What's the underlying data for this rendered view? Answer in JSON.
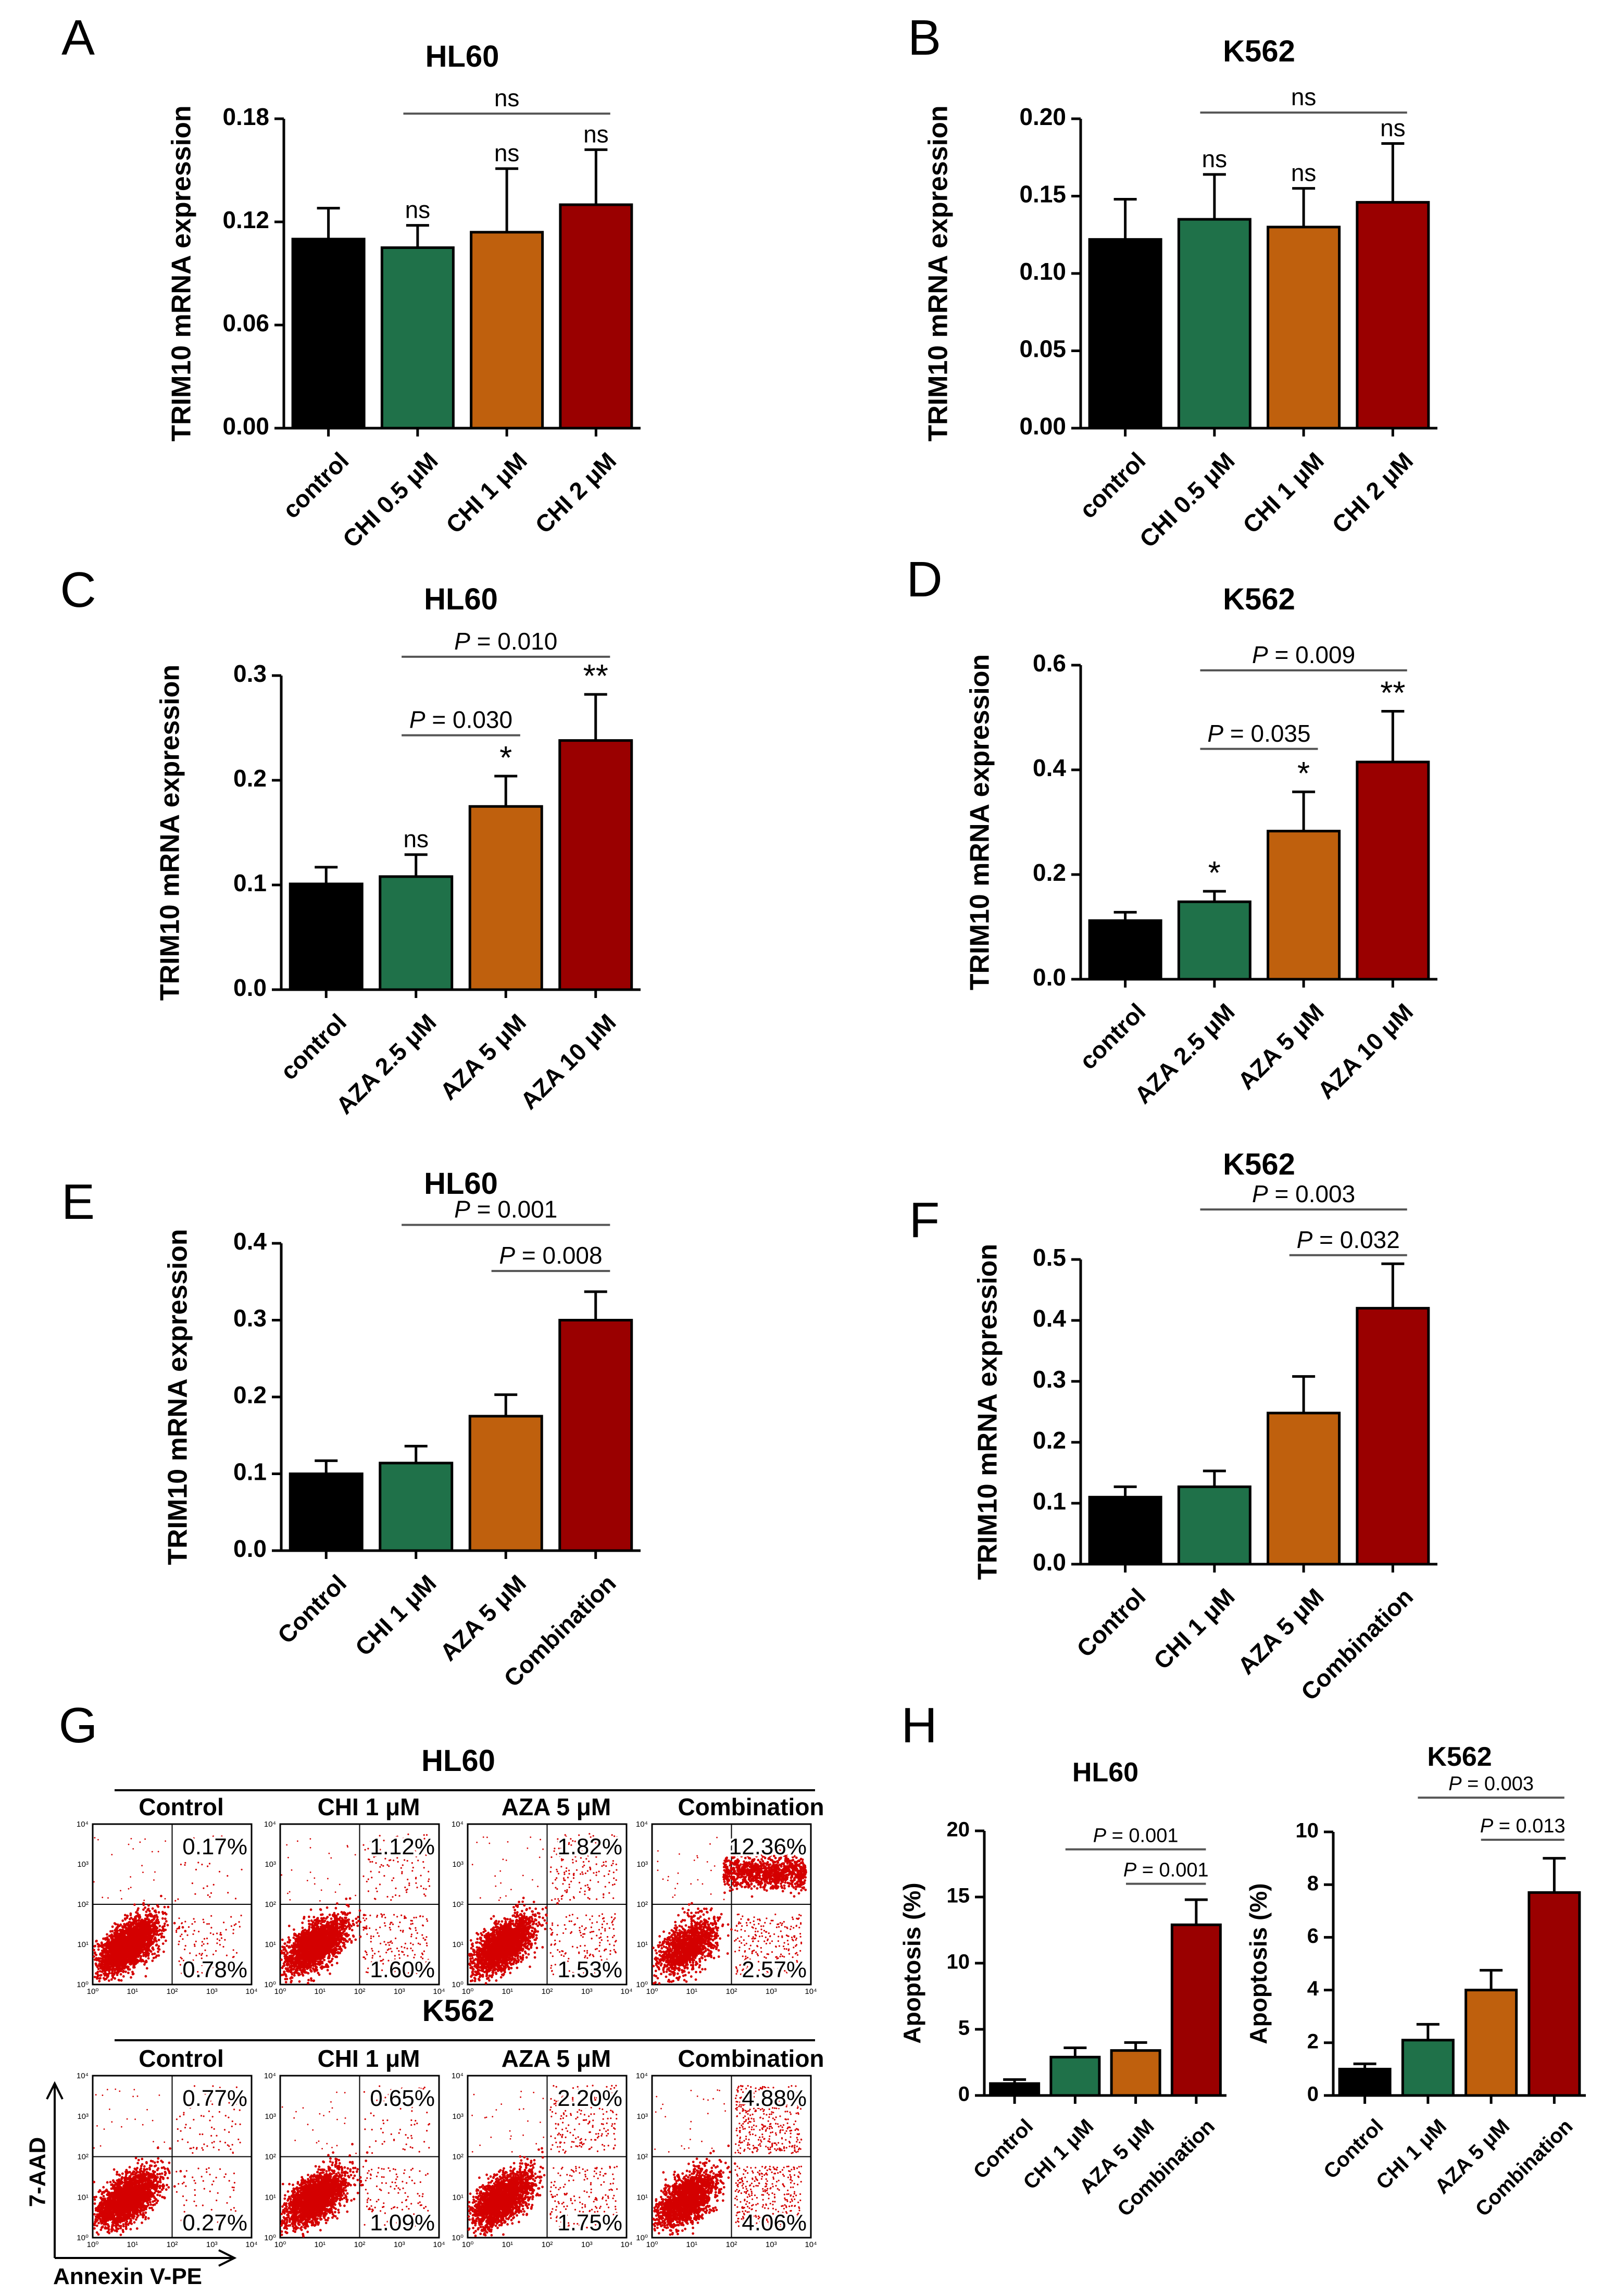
{
  "colors": {
    "control": "#000000",
    "green": "#1f7149",
    "orange": "#bf600d",
    "red": "#9a0000",
    "dot": "#d40000",
    "axis": "#000000",
    "sigline": "#555555"
  },
  "y_axis_title": "TRIM10 mRNA expression",
  "chart_data": [
    {
      "id": "A",
      "panel_label": "A",
      "type": "bar",
      "title": "HL60",
      "ylabel": "TRIM10 mRNA expression",
      "categories": [
        "control",
        "CHI 0.5 μM",
        "CHI 1 μM",
        "CHI 2 μM"
      ],
      "values": [
        0.11,
        0.105,
        0.114,
        0.13
      ],
      "errors": [
        0.018,
        0.013,
        0.037,
        0.032
      ],
      "bar_colors": [
        "#000000",
        "#1f7149",
        "#bf600d",
        "#9a0000"
      ],
      "ylim": [
        0,
        0.18
      ],
      "yticks": [
        0.0,
        0.06,
        0.12,
        0.18
      ],
      "ytick_labels": [
        "0.00",
        "0.06",
        "0.12",
        "0.18"
      ],
      "bar_marks": [
        "",
        "ns",
        "ns",
        "ns"
      ],
      "comparisons": [
        {
          "from": 1,
          "to": 3,
          "label": "ns",
          "y": 0.183
        }
      ]
    },
    {
      "id": "B",
      "panel_label": "B",
      "type": "bar",
      "title": "K562",
      "ylabel": "TRIM10 mRNA expression",
      "categories": [
        "control",
        "CHI 0.5 μM",
        "CHI 1 μM",
        "CHI 2 μM"
      ],
      "values": [
        0.122,
        0.135,
        0.13,
        0.146
      ],
      "errors": [
        0.026,
        0.029,
        0.025,
        0.038
      ],
      "bar_colors": [
        "#000000",
        "#1f7149",
        "#bf600d",
        "#9a0000"
      ],
      "ylim": [
        0,
        0.2
      ],
      "yticks": [
        0.0,
        0.05,
        0.1,
        0.15,
        0.2
      ],
      "ytick_labels": [
        "0.00",
        "0.05",
        "0.10",
        "0.15",
        "0.20"
      ],
      "bar_marks": [
        "",
        "ns",
        "ns",
        "ns"
      ],
      "comparisons": [
        {
          "from": 1,
          "to": 3,
          "label": "ns",
          "y": 0.204
        }
      ]
    },
    {
      "id": "C",
      "panel_label": "C",
      "type": "bar",
      "title": "HL60",
      "ylabel": "TRIM10 mRNA expression",
      "categories": [
        "control",
        "AZA 2.5 μM",
        "AZA 5 μM",
        "AZA 10 μM"
      ],
      "values": [
        0.101,
        0.108,
        0.175,
        0.238
      ],
      "errors": [
        0.016,
        0.021,
        0.029,
        0.044
      ],
      "bar_colors": [
        "#000000",
        "#1f7149",
        "#bf600d",
        "#9a0000"
      ],
      "ylim": [
        0,
        0.3
      ],
      "yticks": [
        0.0,
        0.1,
        0.2,
        0.3
      ],
      "ytick_labels": [
        "0.0",
        "0.1",
        "0.2",
        "0.3"
      ],
      "bar_marks": [
        "",
        "ns",
        "*",
        "**"
      ],
      "comparisons": [
        {
          "from": 1,
          "to": 2,
          "label": "P = 0.030",
          "y": 0.243
        },
        {
          "from": 1,
          "to": 3,
          "label": "P = 0.010",
          "y": 0.318
        }
      ]
    },
    {
      "id": "D",
      "panel_label": "D",
      "type": "bar",
      "title": "K562",
      "ylabel": "TRIM10 mRNA expression",
      "categories": [
        "control",
        "AZA 2.5 μM",
        "AZA 5 μM",
        "AZA 10 μM"
      ],
      "values": [
        0.112,
        0.148,
        0.283,
        0.415
      ],
      "errors": [
        0.016,
        0.02,
        0.075,
        0.097
      ],
      "bar_colors": [
        "#000000",
        "#1f7149",
        "#bf600d",
        "#9a0000"
      ],
      "ylim": [
        0,
        0.6
      ],
      "yticks": [
        0.0,
        0.2,
        0.4,
        0.6
      ],
      "ytick_labels": [
        "0.0",
        "0.2",
        "0.4",
        "0.6"
      ],
      "bar_marks": [
        "",
        "*",
        "*",
        "**"
      ],
      "comparisons": [
        {
          "from": 1,
          "to": 2,
          "label": "P = 0.035",
          "y": 0.44
        },
        {
          "from": 1,
          "to": 3,
          "label": "P = 0.009",
          "y": 0.59
        }
      ]
    },
    {
      "id": "E",
      "panel_label": "E",
      "type": "bar",
      "title": "HL60",
      "ylabel": "TRIM10 mRNA expression",
      "categories": [
        "Control",
        "CHI 1 μM",
        "AZA 5 μM",
        "Combination"
      ],
      "values": [
        0.1,
        0.114,
        0.175,
        0.3
      ],
      "errors": [
        0.017,
        0.022,
        0.028,
        0.037
      ],
      "bar_colors": [
        "#000000",
        "#1f7149",
        "#bf600d",
        "#9a0000"
      ],
      "ylim": [
        0,
        0.4
      ],
      "yticks": [
        0.0,
        0.1,
        0.2,
        0.3,
        0.4
      ],
      "ytick_labels": [
        "0.0",
        "0.1",
        "0.2",
        "0.3",
        "0.4"
      ],
      "bar_marks": [
        "",
        "",
        "",
        ""
      ],
      "comparisons": [
        {
          "from": 2,
          "to": 3,
          "label": "P = 0.008",
          "y": 0.364
        },
        {
          "from": 1,
          "to": 3,
          "label": "P = 0.001",
          "y": 0.424
        }
      ]
    },
    {
      "id": "F",
      "panel_label": "F",
      "type": "bar",
      "title": "K562",
      "ylabel": "TRIM10 mRNA expression",
      "categories": [
        "Control",
        "CHI 1 μM",
        "AZA 5 μM",
        "Combination"
      ],
      "values": [
        0.11,
        0.127,
        0.248,
        0.42
      ],
      "errors": [
        0.017,
        0.026,
        0.06,
        0.073
      ],
      "bar_colors": [
        "#000000",
        "#1f7149",
        "#bf600d",
        "#9a0000"
      ],
      "ylim": [
        0,
        0.5
      ],
      "yticks": [
        0.0,
        0.1,
        0.2,
        0.3,
        0.4,
        0.5
      ],
      "ytick_labels": [
        "0.0",
        "0.1",
        "0.2",
        "0.3",
        "0.4",
        "0.5"
      ],
      "bar_marks": [
        "",
        "",
        "",
        ""
      ],
      "comparisons": [
        {
          "from": 2,
          "to": 3,
          "label": "P = 0.032",
          "y": 0.507
        },
        {
          "from": 1,
          "to": 3,
          "label": "P = 0.003",
          "y": 0.582
        }
      ]
    },
    {
      "id": "H1",
      "panel_label": "H",
      "type": "bar",
      "title": "HL60",
      "ylabel": "Apoptosis (%)",
      "categories": [
        "Control",
        "CHI 1 μM",
        "AZA 5 μM",
        "Combination"
      ],
      "values": [
        0.9,
        2.9,
        3.4,
        12.9
      ],
      "errors": [
        0.3,
        0.7,
        0.6,
        1.9
      ],
      "bar_colors": [
        "#000000",
        "#1f7149",
        "#bf600d",
        "#9a0000"
      ],
      "ylim": [
        0,
        20
      ],
      "yticks": [
        0,
        5,
        10,
        15,
        20
      ],
      "ytick_labels": [
        "0",
        "5",
        "10",
        "15",
        "20"
      ],
      "bar_marks": [
        "",
        "",
        "",
        ""
      ],
      "comparisons": [
        {
          "from": 2,
          "to": 3,
          "label": "P = 0.001",
          "y": 16.0
        },
        {
          "from": 1,
          "to": 3,
          "label": "P = 0.001",
          "y": 18.6
        }
      ]
    },
    {
      "id": "H2",
      "panel_label": "",
      "type": "bar",
      "title": "K562",
      "ylabel": "Apoptosis (%)",
      "categories": [
        "Control",
        "CHI 1 μM",
        "AZA 5 μM",
        "Combination"
      ],
      "values": [
        1.0,
        2.1,
        4.0,
        7.7
      ],
      "errors": [
        0.2,
        0.6,
        0.75,
        1.3
      ],
      "bar_colors": [
        "#000000",
        "#1f7149",
        "#bf600d",
        "#9a0000"
      ],
      "ylim": [
        0,
        10
      ],
      "yticks": [
        0,
        2,
        4,
        6,
        8,
        10
      ],
      "ytick_labels": [
        "0",
        "2",
        "4",
        "6",
        "8",
        "10"
      ],
      "bar_marks": [
        "",
        "",
        "",
        ""
      ],
      "comparisons": [
        {
          "from": 2,
          "to": 3,
          "label": "P = 0.013",
          "y": 9.7
        },
        {
          "from": 1,
          "to": 3,
          "label": "P = 0.003",
          "y": 11.3
        }
      ]
    }
  ],
  "flow": {
    "panel_label": "G",
    "x_axis_label": "Annexin V-PE",
    "y_axis_label": "7-AAD",
    "log_tick_labels": [
      "10⁰",
      "10¹",
      "10²",
      "10³",
      "10⁴"
    ],
    "rows": [
      {
        "title": "HL60",
        "plots": [
          {
            "label": "Control",
            "q_upper_right": "0.17%",
            "q_lower_right": "0.78%",
            "upper_right_frac": 0.0017,
            "lower_right_frac": 0.0078
          },
          {
            "label": "CHI 1 μM",
            "q_upper_right": "1.12%",
            "q_lower_right": "1.60%",
            "upper_right_frac": 0.0112,
            "lower_right_frac": 0.016
          },
          {
            "label": "AZA 5 μM",
            "q_upper_right": "1.82%",
            "q_lower_right": "1.53%",
            "upper_right_frac": 0.0182,
            "lower_right_frac": 0.0153
          },
          {
            "label": "Combination",
            "q_upper_right": "12.36%",
            "q_lower_right": "2.57%",
            "upper_right_frac": 0.1236,
            "lower_right_frac": 0.0257
          }
        ]
      },
      {
        "title": "K562",
        "plots": [
          {
            "label": "Control",
            "q_upper_right": "0.77%",
            "q_lower_right": "0.27%",
            "upper_right_frac": 0.0077,
            "lower_right_frac": 0.0027
          },
          {
            "label": "CHI 1 μM",
            "q_upper_right": "0.65%",
            "q_lower_right": "1.09%",
            "upper_right_frac": 0.0065,
            "lower_right_frac": 0.0109
          },
          {
            "label": "AZA 5 μM",
            "q_upper_right": "2.20%",
            "q_lower_right": "1.75%",
            "upper_right_frac": 0.022,
            "lower_right_frac": 0.0175
          },
          {
            "label": "Combination",
            "q_upper_right": "4.88%",
            "q_lower_right": "4.06%",
            "upper_right_frac": 0.0488,
            "lower_right_frac": 0.0406
          }
        ]
      }
    ]
  }
}
